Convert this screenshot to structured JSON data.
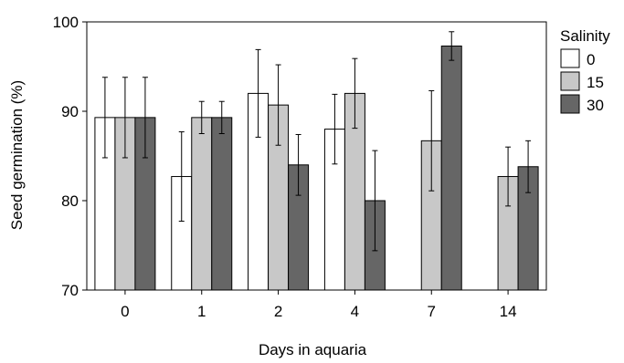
{
  "chart_data": {
    "type": "bar",
    "xlabel": "Days in aquaria",
    "ylabel": "Seed germination (%)",
    "ylim": [
      70,
      100
    ],
    "yticks": [
      70,
      80,
      90,
      100
    ],
    "grid": false,
    "legend": {
      "title": "Salinity",
      "placement": "right"
    },
    "categories": [
      "0",
      "1",
      "2",
      "4",
      "7",
      "14"
    ],
    "series": [
      {
        "name": "0",
        "color": "#ffffff",
        "values": [
          89.3,
          82.7,
          92.0,
          88.0,
          null,
          null
        ],
        "errors": [
          4.5,
          5.0,
          4.9,
          3.9,
          null,
          null
        ]
      },
      {
        "name": "15",
        "color": "#c8c8c8",
        "values": [
          89.3,
          89.3,
          90.7,
          92.0,
          86.7,
          82.7
        ],
        "errors": [
          4.5,
          1.8,
          4.5,
          3.9,
          5.6,
          3.3
        ]
      },
      {
        "name": "30",
        "color": "#666666",
        "values": [
          89.3,
          89.3,
          84.0,
          80.0,
          97.3,
          83.8
        ],
        "errors": [
          4.5,
          1.8,
          3.4,
          5.6,
          1.6,
          2.9
        ]
      }
    ]
  }
}
